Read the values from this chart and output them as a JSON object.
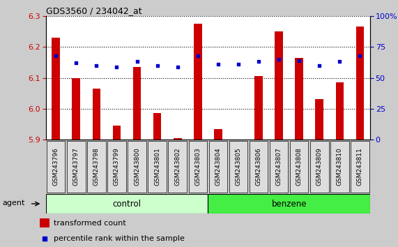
{
  "title": "GDS3560 / 234042_at",
  "samples": [
    "GSM243796",
    "GSM243797",
    "GSM243798",
    "GSM243799",
    "GSM243800",
    "GSM243801",
    "GSM243802",
    "GSM243803",
    "GSM243804",
    "GSM243805",
    "GSM243806",
    "GSM243807",
    "GSM243808",
    "GSM243809",
    "GSM243810",
    "GSM243811"
  ],
  "bar_values": [
    6.23,
    6.1,
    6.065,
    5.945,
    6.135,
    5.985,
    5.905,
    6.275,
    5.935,
    5.9,
    6.105,
    6.25,
    6.165,
    6.03,
    6.085,
    6.265
  ],
  "dot_values": [
    68,
    62,
    60,
    59,
    63,
    60,
    59,
    68,
    61,
    61,
    63,
    65,
    64,
    60,
    63,
    68
  ],
  "ylim_left": [
    5.9,
    6.3
  ],
  "ylim_right": [
    0,
    100
  ],
  "yticks_left": [
    5.9,
    6.0,
    6.1,
    6.2,
    6.3
  ],
  "yticks_right": [
    0,
    25,
    50,
    75,
    100
  ],
  "ytick_labels_right": [
    "0",
    "25",
    "50",
    "75",
    "100%"
  ],
  "bar_color": "#cc0000",
  "dot_color": "#0000cc",
  "bar_baseline": 5.9,
  "n_control": 8,
  "n_benzene": 8,
  "control_label": "control",
  "benzene_label": "benzene",
  "control_color": "#ccffcc",
  "benzene_color": "#44ee44",
  "agent_label": "agent",
  "legend_bar_label": "transformed count",
  "legend_dot_label": "percentile rank within the sample",
  "bg_color": "#cccccc",
  "xtick_bg_color": "#cccccc",
  "plot_bg_color": "#ffffff",
  "grid_color": "#000000",
  "font_color_left": "#cc0000",
  "font_color_right": "#0000cc"
}
